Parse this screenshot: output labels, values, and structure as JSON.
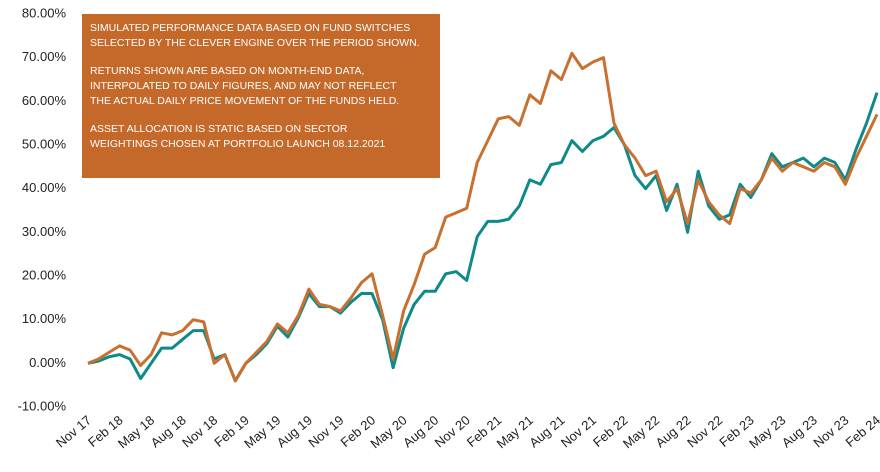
{
  "chart_data": {
    "type": "line",
    "annotations": [
      [
        "SIMULATED PERFORMANCE DATA BASED ON FUND SWITCHES",
        "SELECTED BY THE CLEVER ENGINE OVER THE PERIOD SHOWN."
      ],
      [
        "RETURNS SHOWN ARE BASED ON MONTH-END DATA,",
        "INTERPOLATED TO DAILY FIGURES, AND MAY NOT REFLECT",
        "THE ACTUAL DAILY PRICE MOVEMENT OF THE FUNDS HELD."
      ],
      [
        "ASSET ALLOCATION IS STATIC BASED ON SECTOR",
        "WEIGHTINGS CHOSEN AT PORTFOLIO LAUNCH 08.12.2021"
      ]
    ],
    "annotation_color": "#c5692a",
    "categories": [
      "Nov 17",
      null,
      null,
      "Feb 18",
      null,
      null,
      "May 18",
      null,
      null,
      "Aug 18",
      null,
      null,
      "Nov 18",
      null,
      null,
      "Feb 19",
      null,
      null,
      "May 19",
      null,
      null,
      "Aug 19",
      null,
      null,
      "Nov 19",
      null,
      null,
      "Feb 20",
      null,
      null,
      "May 20",
      null,
      null,
      "Aug 20",
      null,
      null,
      "Nov 20",
      null,
      null,
      "Feb 21",
      null,
      null,
      "May 21",
      null,
      null,
      "Aug 21",
      null,
      null,
      "Nov 21",
      null,
      null,
      "Feb 22",
      null,
      null,
      "May 22",
      null,
      null,
      "Aug 22",
      null,
      null,
      "Nov 22",
      null,
      null,
      "Feb 23",
      null,
      null,
      "May 23",
      null,
      null,
      "Aug 23",
      null,
      null,
      "Nov 23",
      null,
      null,
      "Feb 24"
    ],
    "series": [
      {
        "color": "#0f8a8a",
        "values": [
          0,
          0.5,
          1.5,
          2,
          1,
          -3.5,
          0,
          3.5,
          3.5,
          5.5,
          7.5,
          7.5,
          1,
          2,
          -4,
          0,
          2,
          4.5,
          8.5,
          6,
          10.5,
          16,
          13,
          13,
          11.5,
          14,
          16,
          16,
          10,
          -1,
          8,
          13.5,
          16.5,
          16.5,
          20.5,
          21,
          19,
          29,
          32.5,
          32.5,
          33,
          36,
          42,
          41,
          45.5,
          46,
          51,
          48.5,
          51,
          52,
          54,
          50,
          43,
          40,
          43,
          35,
          41,
          30,
          44,
          36,
          33,
          34,
          41,
          38,
          42,
          48,
          45,
          46,
          47,
          45,
          47,
          46,
          42,
          49,
          55,
          62
        ]
      },
      {
        "color": "#c8702f",
        "values": [
          0,
          1,
          2.5,
          4,
          3,
          -0.5,
          2,
          7,
          6.5,
          7.5,
          10,
          9.5,
          0,
          2,
          -4,
          0,
          2.5,
          5,
          9,
          7,
          11,
          17,
          13.5,
          13,
          12,
          15,
          18.5,
          20.5,
          11,
          1,
          12,
          18,
          25,
          26.5,
          33.5,
          34.5,
          35.5,
          46,
          51,
          56,
          56.5,
          54.5,
          61.5,
          59.5,
          67,
          65,
          71,
          67.5,
          69,
          70,
          55,
          50,
          47,
          43,
          44,
          37,
          40,
          32,
          42,
          37,
          34,
          32,
          40,
          39,
          42,
          47,
          44,
          46,
          45,
          44,
          46,
          45,
          41,
          47,
          52,
          57
        ]
      }
    ],
    "ylim": [
      -10,
      80
    ],
    "yticks": [
      {
        "value": -10,
        "label": "-10.00%"
      },
      {
        "value": 0,
        "label": "0.00%"
      },
      {
        "value": 10,
        "label": "10.00%"
      },
      {
        "value": 20,
        "label": "20.00%"
      },
      {
        "value": 30,
        "label": "30.00%"
      },
      {
        "value": 40,
        "label": "40.00%"
      },
      {
        "value": 50,
        "label": "50.00%"
      },
      {
        "value": 60,
        "label": "60.00%"
      },
      {
        "value": 70,
        "label": "70.00%"
      },
      {
        "value": 80,
        "label": "80.00%"
      }
    ],
    "grid": false
  }
}
